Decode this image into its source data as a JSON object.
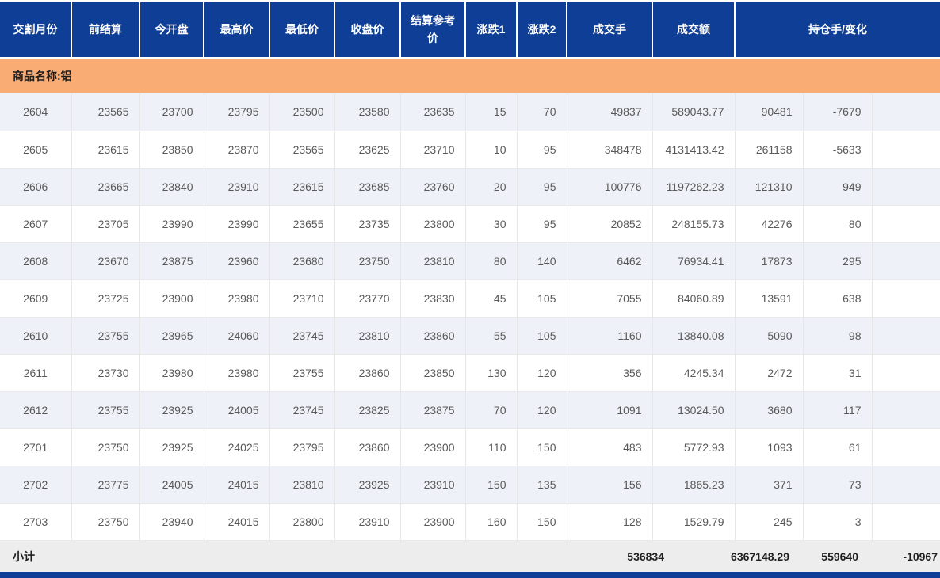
{
  "table": {
    "columns": [
      "交割月份",
      "前结算",
      "今开盘",
      "最高价",
      "最低价",
      "收盘价",
      "结算参考价",
      "涨跌1",
      "涨跌2",
      "成交手",
      "成交额",
      "持仓手/变化"
    ],
    "column_names": [
      "delivery-month",
      "prev-settlement",
      "open-price",
      "high-price",
      "low-price",
      "close-price",
      "settlement-ref-price",
      "change-1",
      "change-2",
      "volume-lots",
      "turnover",
      "open-interest",
      "oi-change"
    ],
    "product_label": "商品名称:铝",
    "rows": [
      [
        "2604",
        "23565",
        "23700",
        "23795",
        "23500",
        "23580",
        "23635",
        "15",
        "70",
        "49837",
        "589043.77",
        "90481",
        "-7679"
      ],
      [
        "2605",
        "23615",
        "23850",
        "23870",
        "23565",
        "23625",
        "23710",
        "10",
        "95",
        "348478",
        "4131413.42",
        "261158",
        "-5633"
      ],
      [
        "2606",
        "23665",
        "23840",
        "23910",
        "23615",
        "23685",
        "23760",
        "20",
        "95",
        "100776",
        "1197262.23",
        "121310",
        "949"
      ],
      [
        "2607",
        "23705",
        "23990",
        "23990",
        "23655",
        "23735",
        "23800",
        "30",
        "95",
        "20852",
        "248155.73",
        "42276",
        "80"
      ],
      [
        "2608",
        "23670",
        "23875",
        "23960",
        "23680",
        "23750",
        "23810",
        "80",
        "140",
        "6462",
        "76934.41",
        "17873",
        "295"
      ],
      [
        "2609",
        "23725",
        "23900",
        "23980",
        "23710",
        "23770",
        "23830",
        "45",
        "105",
        "7055",
        "84060.89",
        "13591",
        "638"
      ],
      [
        "2610",
        "23755",
        "23965",
        "24060",
        "23745",
        "23810",
        "23860",
        "55",
        "105",
        "1160",
        "13840.08",
        "5090",
        "98"
      ],
      [
        "2611",
        "23730",
        "23980",
        "23980",
        "23755",
        "23860",
        "23850",
        "130",
        "120",
        "356",
        "4245.34",
        "2472",
        "31"
      ],
      [
        "2612",
        "23755",
        "23925",
        "24005",
        "23745",
        "23825",
        "23875",
        "70",
        "120",
        "1091",
        "13024.50",
        "3680",
        "117"
      ],
      [
        "2701",
        "23750",
        "23925",
        "24025",
        "23795",
        "23860",
        "23900",
        "110",
        "150",
        "483",
        "5772.93",
        "1093",
        "61"
      ],
      [
        "2702",
        "23775",
        "24005",
        "24015",
        "23810",
        "23925",
        "23910",
        "150",
        "135",
        "156",
        "1865.23",
        "371",
        "73"
      ],
      [
        "2703",
        "23750",
        "23940",
        "24015",
        "23800",
        "23910",
        "23900",
        "160",
        "150",
        "128",
        "1529.79",
        "245",
        "3"
      ]
    ],
    "subtotal": {
      "label": "小计",
      "volume": "536834",
      "turnover": "6367148.29",
      "open_interest": "559640",
      "oi_change": "-10967"
    }
  },
  "colors": {
    "header_bg": "#0e3e95",
    "product_row_bg": "#f9ac73",
    "row_stripe": "#eef1f7",
    "subtotal_bg": "#ededed",
    "data_text": "#595959",
    "footer_bar": "#0e3e95"
  }
}
